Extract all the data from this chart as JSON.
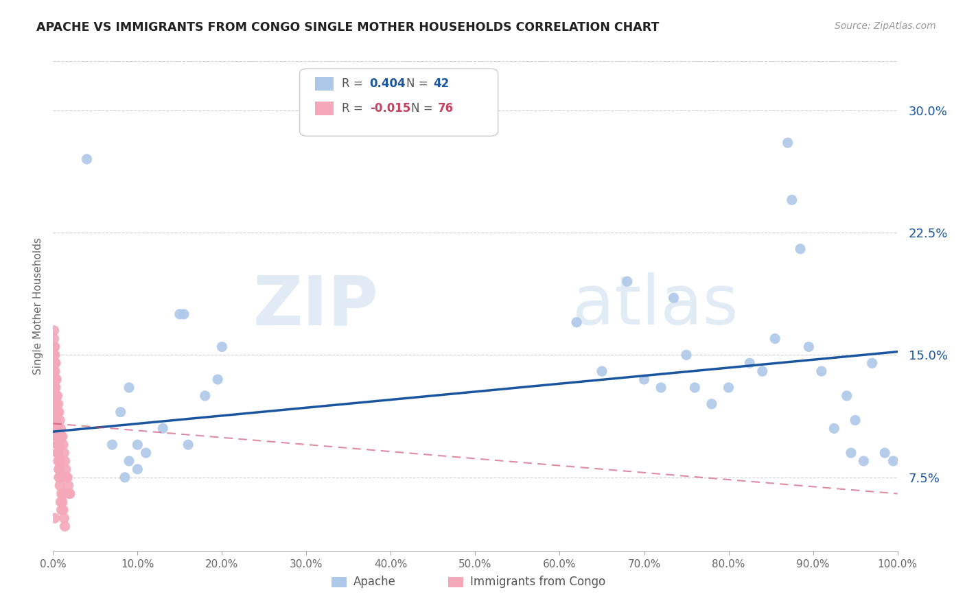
{
  "title": "APACHE VS IMMIGRANTS FROM CONGO SINGLE MOTHER HOUSEHOLDS CORRELATION CHART",
  "source": "Source: ZipAtlas.com",
  "ylabel": "Single Mother Households",
  "xlim": [
    0,
    1.0
  ],
  "ylim": [
    0.03,
    0.33
  ],
  "yticks": [
    0.075,
    0.15,
    0.225,
    0.3
  ],
  "ytick_labels": [
    "7.5%",
    "15.0%",
    "22.5%",
    "30.0%"
  ],
  "xticks": [
    0.0,
    0.1,
    0.2,
    0.3,
    0.4,
    0.5,
    0.6,
    0.7,
    0.8,
    0.9,
    1.0
  ],
  "xtick_labels": [
    "0.0%",
    "10.0%",
    "20.0%",
    "30.0%",
    "40.0%",
    "50.0%",
    "60.0%",
    "70.0%",
    "80.0%",
    "90.0%",
    "100.0%"
  ],
  "apache_r": 0.404,
  "apache_n": 42,
  "congo_r": -0.015,
  "congo_n": 76,
  "apache_color": "#adc8e8",
  "apache_line_color": "#1a56a0",
  "congo_color": "#f4a8b8",
  "congo_line_color": "#c84060",
  "watermark_zip": "ZIP",
  "watermark_atlas": "atlas",
  "background": "#ffffff",
  "apache_points_x": [
    0.04,
    0.07,
    0.08,
    0.09,
    0.1,
    0.11,
    0.085,
    0.09,
    0.1,
    0.13,
    0.15,
    0.155,
    0.16,
    0.18,
    0.195,
    0.2,
    0.62,
    0.65,
    0.68,
    0.7,
    0.72,
    0.735,
    0.75,
    0.76,
    0.78,
    0.8,
    0.825,
    0.84,
    0.855,
    0.87,
    0.875,
    0.885,
    0.895,
    0.91,
    0.925,
    0.94,
    0.945,
    0.95,
    0.96,
    0.97,
    0.985,
    0.995
  ],
  "apache_points_y": [
    0.27,
    0.095,
    0.115,
    0.13,
    0.095,
    0.09,
    0.075,
    0.085,
    0.08,
    0.105,
    0.175,
    0.175,
    0.095,
    0.125,
    0.135,
    0.155,
    0.17,
    0.14,
    0.195,
    0.135,
    0.13,
    0.185,
    0.15,
    0.13,
    0.12,
    0.13,
    0.145,
    0.14,
    0.16,
    0.28,
    0.245,
    0.215,
    0.155,
    0.14,
    0.105,
    0.125,
    0.09,
    0.11,
    0.085,
    0.145,
    0.09,
    0.085
  ],
  "congo_points_x": [
    0.001,
    0.002,
    0.003,
    0.004,
    0.005,
    0.006,
    0.007,
    0.008,
    0.009,
    0.01,
    0.011,
    0.012,
    0.013,
    0.014,
    0.015,
    0.016,
    0.017,
    0.018,
    0.019,
    0.02,
    0.002,
    0.003,
    0.004,
    0.005,
    0.006,
    0.007,
    0.008,
    0.009,
    0.01,
    0.011,
    0.012,
    0.013,
    0.014,
    0.003,
    0.005,
    0.007,
    0.008,
    0.01,
    0.012,
    0.004,
    0.006,
    0.008,
    0.003,
    0.005,
    0.007,
    0.002,
    0.004,
    0.006,
    0.003,
    0.005,
    0.007,
    0.009,
    0.002,
    0.004,
    0.006,
    0.008,
    0.01,
    0.003,
    0.005,
    0.007,
    0.002,
    0.004,
    0.001,
    0.003,
    0.005,
    0.002,
    0.004,
    0.001,
    0.003,
    0.002,
    0.004,
    0.001,
    0.003,
    0.002,
    0.001,
    0.002
  ],
  "congo_points_y": [
    0.165,
    0.155,
    0.145,
    0.135,
    0.125,
    0.12,
    0.115,
    0.11,
    0.105,
    0.1,
    0.1,
    0.095,
    0.09,
    0.085,
    0.08,
    0.075,
    0.075,
    0.07,
    0.065,
    0.065,
    0.145,
    0.135,
    0.125,
    0.115,
    0.105,
    0.095,
    0.085,
    0.075,
    0.065,
    0.06,
    0.055,
    0.05,
    0.045,
    0.125,
    0.105,
    0.095,
    0.085,
    0.075,
    0.065,
    0.11,
    0.09,
    0.075,
    0.115,
    0.095,
    0.08,
    0.13,
    0.105,
    0.085,
    0.12,
    0.1,
    0.08,
    0.06,
    0.135,
    0.11,
    0.09,
    0.07,
    0.055,
    0.125,
    0.095,
    0.075,
    0.14,
    0.11,
    0.15,
    0.12,
    0.09,
    0.14,
    0.1,
    0.155,
    0.13,
    0.145,
    0.115,
    0.16,
    0.12,
    0.15,
    0.155,
    0.05
  ],
  "apache_trend_x": [
    0.0,
    1.0
  ],
  "apache_trend_y": [
    0.103,
    0.152
  ],
  "congo_trend_x": [
    0.0,
    1.0
  ],
  "congo_trend_y": [
    0.108,
    0.065
  ]
}
